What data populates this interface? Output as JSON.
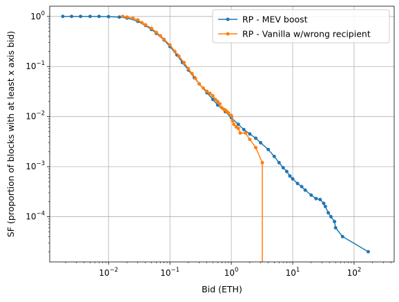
{
  "chart_data": {
    "type": "line",
    "title": "",
    "xlabel": "Bid (ETH)",
    "ylabel": "SF (proportion of blocks with at least x axis bid)",
    "xscale": "log",
    "yscale": "log",
    "xlim": [
      0.0011,
      450
    ],
    "ylim": [
      1.25e-05,
      1.6
    ],
    "grid": true,
    "legend_position": "top-right",
    "x_ticks": [
      {
        "value": 0.01,
        "base": "10",
        "exp": "−2"
      },
      {
        "value": 0.1,
        "base": "10",
        "exp": "−1"
      },
      {
        "value": 1,
        "base": "10",
        "exp": "0"
      },
      {
        "value": 10,
        "base": "10",
        "exp": "1"
      },
      {
        "value": 100,
        "base": "10",
        "exp": "2"
      }
    ],
    "y_ticks": [
      {
        "value": 1,
        "base": "10",
        "exp": "0"
      },
      {
        "value": 0.1,
        "base": "10",
        "exp": "−1"
      },
      {
        "value": 0.01,
        "base": "10",
        "exp": "−2"
      },
      {
        "value": 0.001,
        "base": "10",
        "exp": "−3"
      },
      {
        "value": 0.0001,
        "base": "10",
        "exp": "−4"
      }
    ],
    "series": [
      {
        "name": "RP - MEV boost",
        "color": "#1f77b4",
        "points": [
          [
            0.0018,
            1.0
          ],
          [
            0.0025,
            1.0
          ],
          [
            0.0035,
            1.0
          ],
          [
            0.005,
            1.0
          ],
          [
            0.007,
            1.0
          ],
          [
            0.01,
            0.99
          ],
          [
            0.015,
            0.97
          ],
          [
            0.02,
            0.93
          ],
          [
            0.03,
            0.8
          ],
          [
            0.04,
            0.66
          ],
          [
            0.05,
            0.55
          ],
          [
            0.06,
            0.46
          ],
          [
            0.08,
            0.34
          ],
          [
            0.1,
            0.25
          ],
          [
            0.13,
            0.17
          ],
          [
            0.16,
            0.12
          ],
          [
            0.2,
            0.085
          ],
          [
            0.25,
            0.06
          ],
          [
            0.3,
            0.045
          ],
          [
            0.4,
            0.03
          ],
          [
            0.5,
            0.022
          ],
          [
            0.6,
            0.017
          ],
          [
            0.8,
            0.0125
          ],
          [
            1.0,
            0.0095
          ],
          [
            1.3,
            0.007
          ],
          [
            1.6,
            0.0055
          ],
          [
            2.0,
            0.0045
          ],
          [
            2.5,
            0.0037
          ],
          [
            3.0,
            0.003
          ],
          [
            4.0,
            0.0022
          ],
          [
            5.0,
            0.0016
          ],
          [
            6.0,
            0.0012
          ],
          [
            7.0,
            0.00095
          ],
          [
            8.0,
            0.0008
          ],
          [
            9.0,
            0.00065
          ],
          [
            10.0,
            0.00057
          ],
          [
            12.0,
            0.00046
          ],
          [
            14.0,
            0.0004
          ],
          [
            16.0,
            0.00034
          ],
          [
            20.0,
            0.00027
          ],
          [
            24.0,
            0.00023
          ],
          [
            28.0,
            0.00022
          ],
          [
            32.0,
            0.000185
          ],
          [
            34.0,
            0.00016
          ],
          [
            38.0,
            0.00012
          ],
          [
            42.0,
            0.0001
          ],
          [
            48.0,
            8e-05
          ],
          [
            50.0,
            6e-05
          ],
          [
            65.0,
            4e-05
          ],
          [
            170.0,
            2e-05
          ]
        ]
      },
      {
        "name": "RP - Vanilla w/wrong recipient",
        "color": "#ff7f0e",
        "points": [
          [
            0.017,
            1.0
          ],
          [
            0.02,
            0.97
          ],
          [
            0.025,
            0.92
          ],
          [
            0.03,
            0.85
          ],
          [
            0.035,
            0.75
          ],
          [
            0.04,
            0.68
          ],
          [
            0.05,
            0.58
          ],
          [
            0.06,
            0.48
          ],
          [
            0.07,
            0.41
          ],
          [
            0.08,
            0.35
          ],
          [
            0.1,
            0.27
          ],
          [
            0.12,
            0.2
          ],
          [
            0.14,
            0.16
          ],
          [
            0.17,
            0.12
          ],
          [
            0.2,
            0.09
          ],
          [
            0.23,
            0.072
          ],
          [
            0.26,
            0.058
          ],
          [
            0.3,
            0.045
          ],
          [
            0.35,
            0.037
          ],
          [
            0.4,
            0.032
          ],
          [
            0.45,
            0.029
          ],
          [
            0.5,
            0.026
          ],
          [
            0.55,
            0.022
          ],
          [
            0.6,
            0.02
          ],
          [
            0.65,
            0.018
          ],
          [
            0.7,
            0.015
          ],
          [
            0.75,
            0.014
          ],
          [
            0.8,
            0.0135
          ],
          [
            0.85,
            0.0125
          ],
          [
            0.9,
            0.0118
          ],
          [
            1.0,
            0.0105
          ],
          [
            1.05,
            0.0082
          ],
          [
            1.1,
            0.007
          ],
          [
            1.2,
            0.0062
          ],
          [
            1.3,
            0.0058
          ],
          [
            1.4,
            0.0047
          ],
          [
            1.7,
            0.0047
          ],
          [
            2.0,
            0.0035
          ],
          [
            2.5,
            0.0024
          ],
          [
            3.2,
            0.0012
          ],
          [
            3.2,
            1.25e-05
          ]
        ]
      }
    ]
  }
}
